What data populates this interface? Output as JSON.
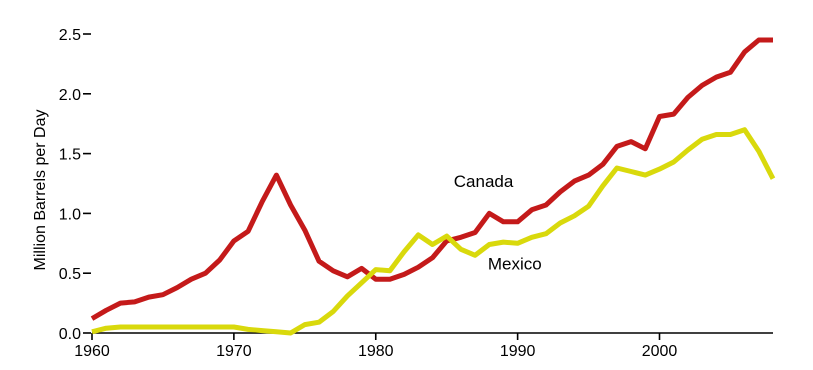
{
  "chart_data": {
    "type": "line",
    "title": "",
    "xlabel": "",
    "ylabel": "Million Barrels per Day",
    "xlim": [
      1960,
      2008
    ],
    "ylim": [
      0,
      2.5
    ],
    "x_ticks": [
      1960,
      1970,
      1980,
      1990,
      2000
    ],
    "y_ticks": [
      0.0,
      0.5,
      1.0,
      1.5,
      2.0,
      2.5
    ],
    "x_tick_labels": [
      "1960",
      "1970",
      "1980",
      "1990",
      "2000"
    ],
    "y_tick_labels": [
      "0.0",
      "0.5",
      "1.0",
      "1.5",
      "2.0",
      "2.5"
    ],
    "grid": false,
    "legend": "inline labels",
    "series": [
      {
        "name": "Canada",
        "color": "#c41a1a",
        "x": [
          1960,
          1961,
          1962,
          1963,
          1964,
          1965,
          1966,
          1967,
          1968,
          1969,
          1970,
          1971,
          1972,
          1973,
          1974,
          1975,
          1976,
          1977,
          1978,
          1979,
          1980,
          1981,
          1982,
          1983,
          1984,
          1985,
          1986,
          1987,
          1988,
          1989,
          1990,
          1991,
          1992,
          1993,
          1994,
          1995,
          1996,
          1997,
          1998,
          1999,
          2000,
          2001,
          2002,
          2003,
          2004,
          2005,
          2006,
          2007,
          2008
        ],
        "values": [
          0.12,
          0.19,
          0.25,
          0.26,
          0.3,
          0.32,
          0.38,
          0.45,
          0.5,
          0.61,
          0.77,
          0.85,
          1.1,
          1.32,
          1.07,
          0.86,
          0.6,
          0.52,
          0.47,
          0.54,
          0.45,
          0.45,
          0.49,
          0.55,
          0.63,
          0.77,
          0.8,
          0.84,
          1.0,
          0.93,
          0.93,
          1.03,
          1.07,
          1.18,
          1.27,
          1.32,
          1.41,
          1.56,
          1.6,
          1.54,
          1.81,
          1.83,
          1.97,
          2.07,
          2.14,
          2.18,
          2.35,
          2.45,
          2.45
        ]
      },
      {
        "name": "Mexico",
        "color": "#d9d90c",
        "x": [
          1960,
          1961,
          1962,
          1963,
          1964,
          1965,
          1966,
          1967,
          1968,
          1969,
          1970,
          1971,
          1972,
          1973,
          1974,
          1975,
          1976,
          1977,
          1978,
          1979,
          1980,
          1981,
          1982,
          1983,
          1984,
          1985,
          1986,
          1987,
          1988,
          1989,
          1990,
          1991,
          1992,
          1993,
          1994,
          1995,
          1996,
          1997,
          1998,
          1999,
          2000,
          2001,
          2002,
          2003,
          2004,
          2005,
          2006,
          2007,
          2008
        ],
        "values": [
          0.01,
          0.04,
          0.05,
          0.05,
          0.05,
          0.05,
          0.05,
          0.05,
          0.05,
          0.05,
          0.05,
          0.03,
          0.02,
          0.01,
          0.0,
          0.07,
          0.09,
          0.18,
          0.31,
          0.42,
          0.53,
          0.52,
          0.68,
          0.82,
          0.74,
          0.81,
          0.7,
          0.65,
          0.74,
          0.76,
          0.75,
          0.8,
          0.83,
          0.92,
          0.98,
          1.06,
          1.23,
          1.38,
          1.35,
          1.32,
          1.37,
          1.43,
          1.53,
          1.62,
          1.66,
          1.66,
          1.7,
          1.52,
          1.29
        ]
      }
    ],
    "annotations": [
      {
        "text": "Canada",
        "series": "Canada",
        "x": 1987.6,
        "y": 1.22
      },
      {
        "text": "Mexico",
        "series": "Mexico",
        "x": 1989.8,
        "y": 0.53
      }
    ]
  }
}
